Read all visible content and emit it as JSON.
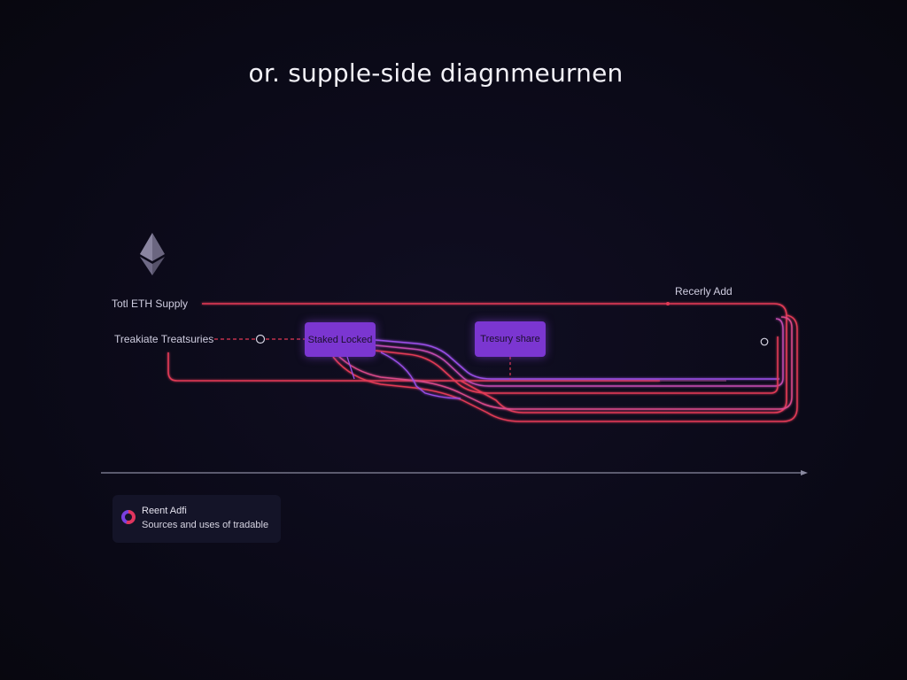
{
  "diagram": {
    "title": "or. supple-side diagnmeurnen",
    "logo_icon": "ethereum-icon",
    "labels": {
      "total_supply": "Totl ETH Supply",
      "tradeable_treasuries": "Treakiate Treatsuries",
      "recently_add": "Recerly Add"
    },
    "nodes": {
      "staked_locked": "Staked Locked",
      "treasury_share": "Tresury share"
    },
    "legend": {
      "title": "Reent Adfi",
      "subtitle": "Sources and uses of tradable"
    },
    "colors": {
      "background": "#0b0a18",
      "flow_red": "#e23a56",
      "flow_pink": "#d94a8a",
      "flow_purple": "#9b4fe8",
      "node_fill": "#7b36d1",
      "axis": "#8a8aa0"
    }
  }
}
